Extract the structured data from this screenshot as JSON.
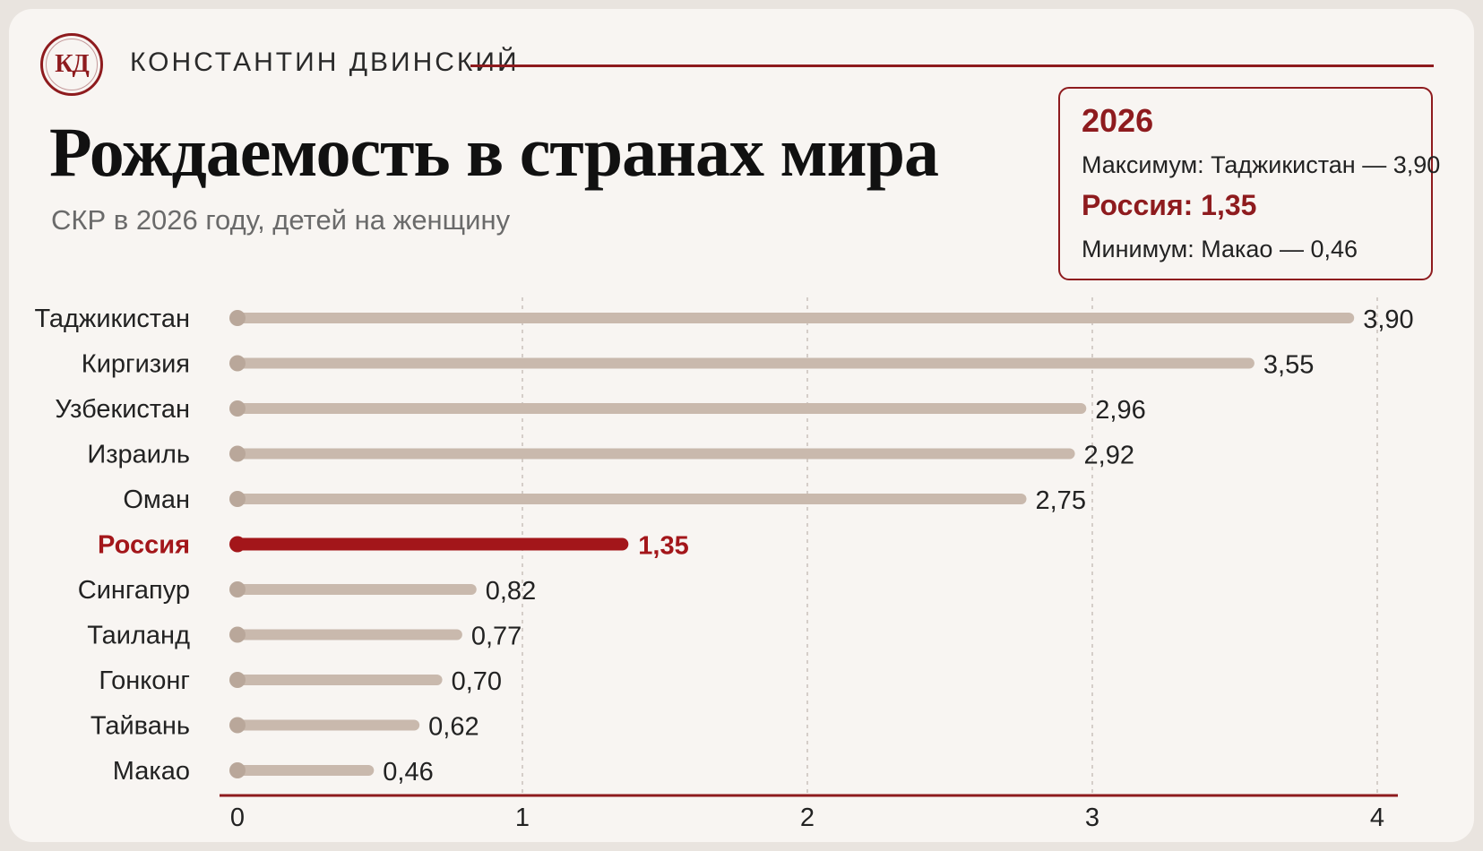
{
  "header": {
    "logo_text": "КД",
    "author": "КОНСТАНТИН ДВИНСКИЙ",
    "title": "Рождаемость в странах мира",
    "subtitle": "СКР в 2026 году, детей на женщину"
  },
  "infobox": {
    "year": "2026",
    "max_line": "Максимум: Таджикистан — 3,90",
    "russia_line": "Россия: 1,35",
    "min_line": "Минимум: Макао — 0,46"
  },
  "colors": {
    "accent": "#8e1b1e",
    "highlight_bar": "#a3161a",
    "bar": "#c9b9ad",
    "bar_dot": "#b9a79a",
    "grid": "#c9c2bb"
  },
  "chart_data": {
    "type": "bar",
    "orientation": "horizontal",
    "categories": [
      "Таджикистан",
      "Киргизия",
      "Узбекистан",
      "Израиль",
      "Оман",
      "Россия",
      "Сингапур",
      "Таиланд",
      "Гонконг",
      "Тайвань",
      "Макао"
    ],
    "values": [
      3.9,
      3.55,
      2.96,
      2.92,
      2.75,
      1.35,
      0.82,
      0.77,
      0.7,
      0.62,
      0.46
    ],
    "value_labels": [
      "3,90",
      "3,55",
      "2,96",
      "2,92",
      "2,75",
      "1,35",
      "0,82",
      "0,77",
      "0,70",
      "0,62",
      "0,46"
    ],
    "highlight": "Россия",
    "xlim": [
      0,
      4
    ],
    "xticks": [
      0,
      1,
      2,
      3,
      4
    ],
    "xtick_labels": [
      "0",
      "1",
      "2",
      "3",
      "4"
    ],
    "grid": "vertical dashed",
    "title": "Рождаемость в странах мира",
    "xlabel": "",
    "ylabel": ""
  }
}
